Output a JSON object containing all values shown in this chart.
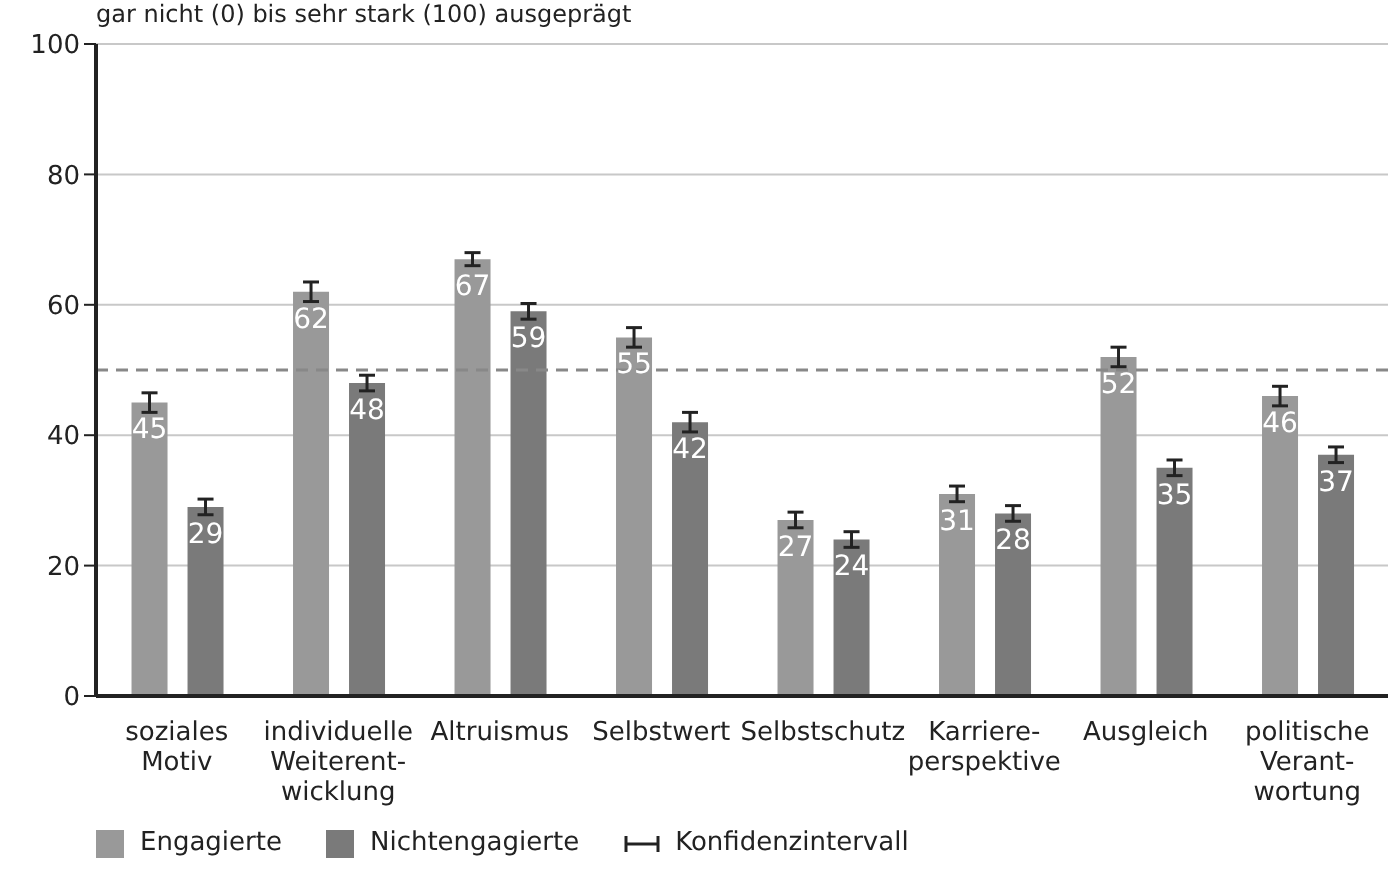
{
  "chart_data": {
    "type": "bar",
    "subtitle": "gar nicht (0) bis sehr stark (100) ausgeprägt",
    "categories": [
      "soziales\nMotiv",
      "individuelle\nWeiterent-\nwicklung",
      "Altruismus",
      "Selbstwert",
      "Selbstschutz",
      "Karriere-\nperspektive",
      "Ausgleich",
      "politische\nVerant-\nwortung"
    ],
    "series": [
      {
        "name": "Engagierte",
        "color": "#999999",
        "values": [
          45,
          62,
          67,
          55,
          27,
          31,
          52,
          46
        ],
        "errors": [
          1.5,
          1.5,
          1,
          1.5,
          1.2,
          1.2,
          1.5,
          1.5
        ]
      },
      {
        "name": "Nichtengagierte",
        "color": "#7a7a7a",
        "values": [
          29,
          48,
          59,
          42,
          24,
          28,
          35,
          37
        ],
        "errors": [
          1.2,
          1.2,
          1.2,
          1.5,
          1.2,
          1.2,
          1.2,
          1.2
        ]
      }
    ],
    "ylim": [
      0,
      100
    ],
    "yticks": [
      0,
      20,
      40,
      60,
      80,
      100
    ],
    "grid": "y",
    "data_labels": true,
    "legend": "bottom left",
    "ref_lines": [
      {
        "axis": "y",
        "value": 50,
        "color": "#888888",
        "line_style": "dashed"
      }
    ],
    "annotations": [
      "Konfidenzintervall"
    ]
  }
}
